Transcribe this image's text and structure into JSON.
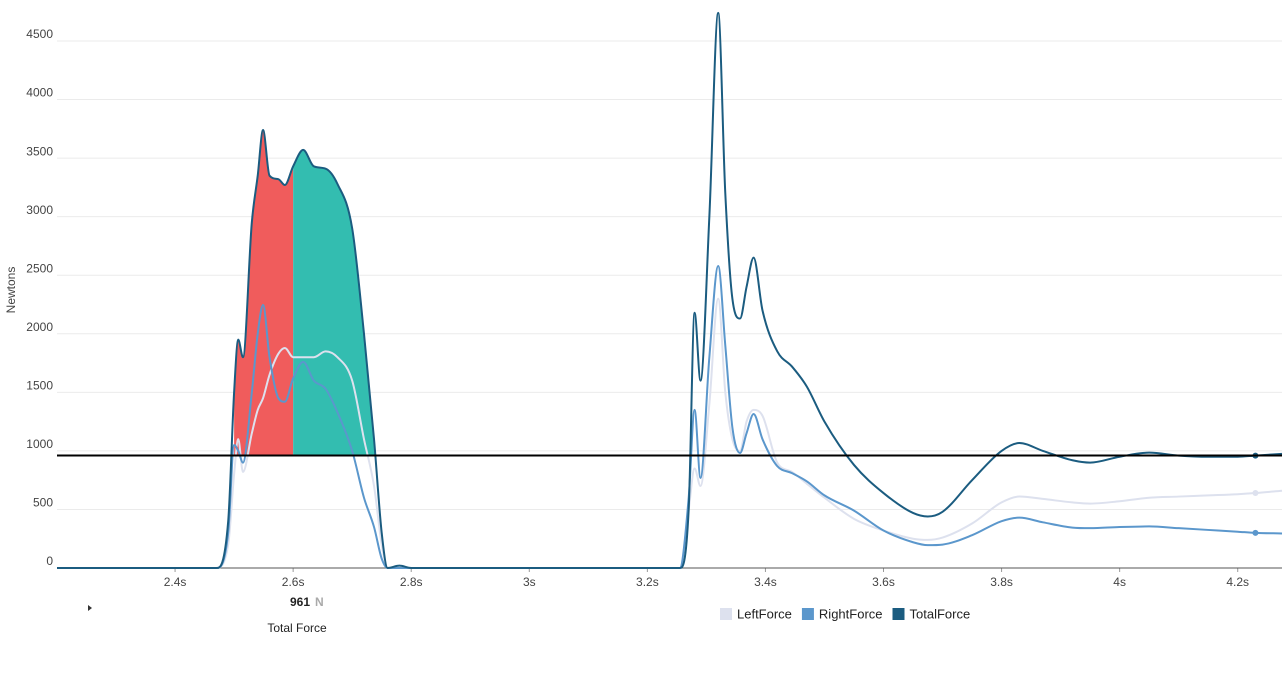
{
  "chart_data": {
    "type": "line",
    "y_label": "Newtons",
    "x": [
      2.2,
      2.47,
      2.49,
      2.5,
      2.507,
      2.515,
      2.53,
      2.54,
      2.549,
      2.56,
      2.575,
      2.586,
      2.6,
      2.617,
      2.635,
      2.655,
      2.675,
      2.7,
      2.72,
      2.737,
      2.75,
      2.76,
      2.78,
      2.8,
      3.255,
      3.27,
      3.28,
      3.29,
      3.305,
      3.32,
      3.332,
      3.344,
      3.357,
      3.368,
      3.38,
      3.395,
      3.42,
      3.445,
      3.47,
      3.5,
      3.55,
      3.6,
      3.65,
      3.675,
      3.7,
      3.75,
      3.8,
      3.83,
      3.87,
      3.92,
      3.95,
      4.0,
      4.05,
      4.1,
      4.15,
      4.2,
      4.23,
      4.275
    ],
    "series": [
      {
        "name": "LeftForce",
        "color": "#dde1ee",
        "values": [
          0,
          0,
          200,
          800,
          1100,
          820,
          1150,
          1350,
          1450,
          1650,
          1830,
          1879,
          1800,
          1800,
          1800,
          1850,
          1800,
          1600,
          1100,
          700,
          200,
          0,
          0,
          0,
          0,
          500,
          850,
          700,
          1400,
          2300,
          1500,
          1100,
          1000,
          1250,
          1350,
          1300,
          900,
          820,
          720,
          600,
          420,
          320,
          250,
          240,
          260,
          380,
          560,
          610,
          590,
          560,
          550,
          570,
          600,
          610,
          620,
          630,
          640,
          660
        ]
      },
      {
        "name": "RightForce",
        "color": "#5b97cc",
        "values": [
          0,
          0,
          300,
          1050,
          1000,
          900,
          1500,
          2000,
          2246,
          1800,
          1450,
          1420,
          1620,
          1760,
          1600,
          1530,
          1330,
          1000,
          600,
          350,
          80,
          0,
          0,
          0,
          0,
          600,
          1350,
          769,
          1800,
          2579,
          1900,
          1200,
          982,
          1150,
          1315,
          1100,
          870,
          810,
          740,
          620,
          490,
          320,
          220,
          195,
          200,
          280,
          400,
          430,
          390,
          345,
          340,
          350,
          355,
          340,
          325,
          310,
          300,
          295
        ]
      },
      {
        "name": "TotalForce",
        "color": "#1b5c80",
        "values": [
          0,
          0,
          400,
          1500,
          1950,
          1800,
          2950,
          3350,
          3740,
          3350,
          3320,
          3270,
          3430,
          3570,
          3430,
          3410,
          3280,
          2900,
          2000,
          1100,
          300,
          0,
          20,
          0,
          0,
          500,
          2180,
          1600,
          3000,
          4740,
          3200,
          2300,
          2130,
          2400,
          2650,
          2200,
          1850,
          1720,
          1550,
          1250,
          880,
          640,
          470,
          440,
          480,
          750,
          1000,
          1067,
          1000,
          920,
          900,
          950,
          985,
          960,
          950,
          950,
          960,
          975
        ]
      }
    ],
    "xlim": [
      2.2,
      4.275
    ],
    "xticks": [
      {
        "value": 2.4,
        "label": "2.4s"
      },
      {
        "value": 2.6,
        "label": "2.6s"
      },
      {
        "value": 2.8,
        "label": "2.8s"
      },
      {
        "value": 3,
        "label": "3s"
      },
      {
        "value": 3.2,
        "label": "3.2s"
      },
      {
        "value": 3.4,
        "label": "3.4s"
      },
      {
        "value": 3.6,
        "label": "3.6s"
      },
      {
        "value": 3.8,
        "label": "3.8s"
      },
      {
        "value": 4,
        "label": "4s"
      },
      {
        "value": 4.2,
        "label": "4.2s"
      }
    ],
    "ylim": [
      0,
      4500
    ],
    "yticks": [
      0,
      500,
      1000,
      1500,
      2000,
      2500,
      3000,
      3500,
      4000,
      4500
    ],
    "grid": true,
    "threshold": {
      "value": 961,
      "unit": "N",
      "label": "Total Force",
      "color": "#000000"
    },
    "regions": [
      {
        "start": 2.5,
        "end": 2.6,
        "color": "#f05c5c"
      },
      {
        "start": 2.6,
        "end": 2.75,
        "color": "#33bdb0"
      }
    ],
    "end_marker_index": 56
  }
}
